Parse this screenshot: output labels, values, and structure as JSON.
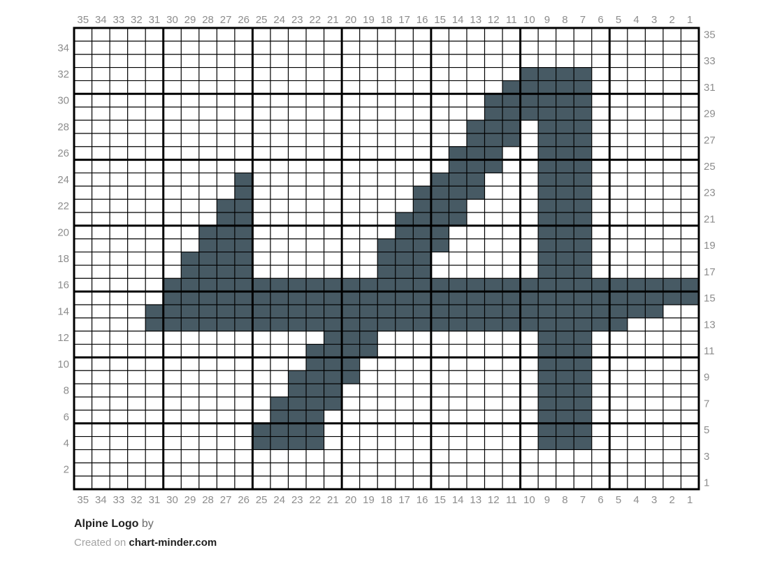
{
  "chart_data": {
    "type": "heatmap",
    "title": "Alpine Logo",
    "grid_cols": 35,
    "grid_rows": 35,
    "bold_line_every": 5,
    "fill_color": "#475a64",
    "grid_line_color": "#000000",
    "label_color": "#8d8d8d",
    "col_labels": [
      35,
      34,
      33,
      32,
      31,
      30,
      29,
      28,
      27,
      26,
      25,
      24,
      23,
      22,
      21,
      20,
      19,
      18,
      17,
      16,
      15,
      14,
      13,
      12,
      11,
      10,
      9,
      8,
      7,
      6,
      5,
      4,
      3,
      2,
      1
    ],
    "left_row_labels": [
      34,
      32,
      30,
      28,
      26,
      24,
      22,
      20,
      18,
      16,
      14,
      12,
      10,
      8,
      6,
      4,
      2
    ],
    "right_row_labels": [
      35,
      33,
      31,
      29,
      27,
      25,
      23,
      21,
      19,
      17,
      15,
      13,
      11,
      9,
      7,
      5,
      3,
      1
    ],
    "filled_runs_by_row": {
      "32": [
        [
          10,
          7
        ]
      ],
      "31": [
        [
          11,
          7
        ]
      ],
      "30": [
        [
          12,
          7
        ]
      ],
      "29": [
        [
          12,
          7
        ]
      ],
      "28": [
        [
          13,
          11
        ],
        [
          9,
          7
        ]
      ],
      "27": [
        [
          13,
          11
        ],
        [
          9,
          7
        ]
      ],
      "26": [
        [
          14,
          12
        ],
        [
          9,
          7
        ]
      ],
      "25": [
        [
          14,
          12
        ],
        [
          9,
          7
        ]
      ],
      "24": [
        [
          26,
          26
        ],
        [
          15,
          13
        ],
        [
          9,
          7
        ]
      ],
      "23": [
        [
          26,
          26
        ],
        [
          16,
          13
        ],
        [
          9,
          7
        ]
      ],
      "22": [
        [
          27,
          26
        ],
        [
          16,
          14
        ],
        [
          9,
          7
        ]
      ],
      "21": [
        [
          27,
          26
        ],
        [
          17,
          14
        ],
        [
          9,
          7
        ]
      ],
      "20": [
        [
          28,
          26
        ],
        [
          17,
          15
        ],
        [
          9,
          7
        ]
      ],
      "19": [
        [
          28,
          26
        ],
        [
          18,
          15
        ],
        [
          9,
          7
        ]
      ],
      "18": [
        [
          29,
          26
        ],
        [
          18,
          16
        ],
        [
          9,
          7
        ]
      ],
      "17": [
        [
          29,
          26
        ],
        [
          18,
          16
        ],
        [
          9,
          7
        ]
      ],
      "16": [
        [
          30,
          1
        ]
      ],
      "15": [
        [
          30,
          1
        ]
      ],
      "14": [
        [
          31,
          3
        ]
      ],
      "13": [
        [
          31,
          5
        ]
      ],
      "12": [
        [
          21,
          19
        ],
        [
          9,
          7
        ]
      ],
      "11": [
        [
          22,
          19
        ],
        [
          9,
          7
        ]
      ],
      "10": [
        [
          22,
          20
        ],
        [
          9,
          7
        ]
      ],
      "9": [
        [
          23,
          20
        ],
        [
          9,
          7
        ]
      ],
      "8": [
        [
          23,
          21
        ],
        [
          9,
          7
        ]
      ],
      "7": [
        [
          24,
          21
        ],
        [
          9,
          7
        ]
      ],
      "6": [
        [
          24,
          22
        ],
        [
          9,
          7
        ]
      ],
      "5": [
        [
          25,
          22
        ],
        [
          9,
          7
        ]
      ],
      "4": [
        [
          25,
          22
        ],
        [
          9,
          7
        ]
      ]
    }
  },
  "footer": {
    "pattern_name": "Alpine Logo",
    "by_label": "by",
    "created_on_label": "Created on",
    "site_name": "chart-minder.com"
  }
}
